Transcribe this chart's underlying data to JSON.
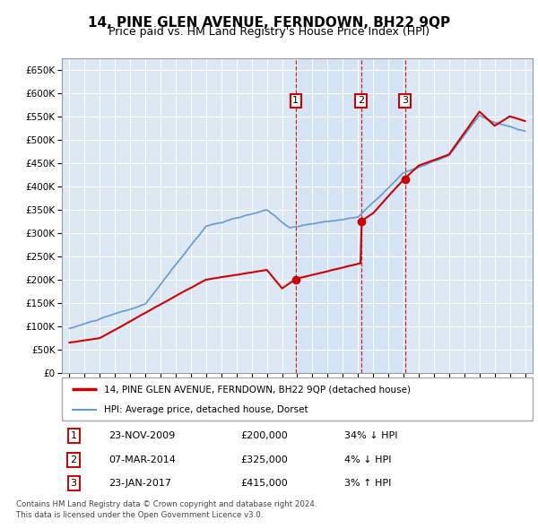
{
  "title": "14, PINE GLEN AVENUE, FERNDOWN, BH22 9QP",
  "subtitle": "Price paid vs. HM Land Registry's House Price Index (HPI)",
  "title_fontsize": 11,
  "subtitle_fontsize": 9,
  "background_color": "#ffffff",
  "plot_bg_color": "#dce9f5",
  "grid_color": "#ffffff",
  "sale_label": "14, PINE GLEN AVENUE, FERNDOWN, BH22 9QP (detached house)",
  "hpi_label": "HPI: Average price, detached house, Dorset",
  "sale_color": "#cc0000",
  "hpi_color": "#6699cc",
  "transactions": [
    {
      "num": 1,
      "date": "23-NOV-2009",
      "price": 200000,
      "pct": "34%",
      "dir": "↓",
      "x_val": 2009.9
    },
    {
      "num": 2,
      "date": "07-MAR-2014",
      "price": 325000,
      "pct": "4%",
      "dir": "↓",
      "x_val": 2014.2
    },
    {
      "num": 3,
      "date": "23-JAN-2017",
      "price": 415000,
      "pct": "3%",
      "dir": "↑",
      "x_val": 2017.1
    }
  ],
  "footer1": "Contains HM Land Registry data © Crown copyright and database right 2024.",
  "footer2": "This data is licensed under the Open Government Licence v3.0.",
  "ylim": [
    0,
    675000
  ],
  "yticks": [
    0,
    50000,
    100000,
    150000,
    200000,
    250000,
    300000,
    350000,
    400000,
    450000,
    500000,
    550000,
    600000,
    650000
  ],
  "xlim": [
    1994.5,
    2025.5
  ]
}
